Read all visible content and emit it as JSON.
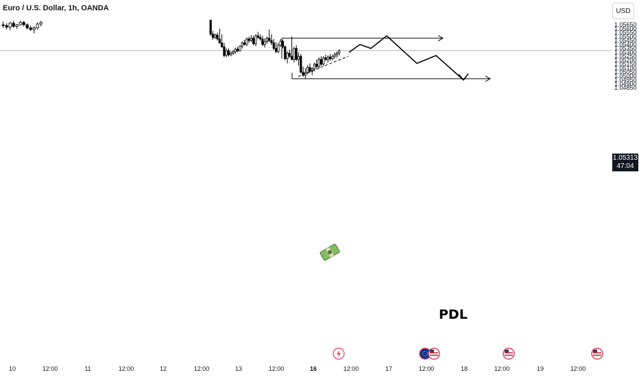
{
  "header": {
    "title": "Euro / U.S. Dollar, 1h, OANDA",
    "currency_button": "USD"
  },
  "current_price": {
    "value": "1.05313",
    "countdown": "47:04"
  },
  "annotations": {
    "pdl_label": "PDL"
  },
  "colors": {
    "candle": "#000000",
    "background": "#ffffff",
    "axis_text": "#131722",
    "grid_line": "#b2b5be",
    "event_red": "#e0425a",
    "event_blue": "#2962ff"
  },
  "chart_data": {
    "type": "candlestick",
    "title": "Euro / U.S. Dollar, 1h, OANDA",
    "ylim": [
      1.048,
      1.057
    ],
    "y_ticks": [
      "1.05650",
      "1.05600",
      "1.05550",
      "1.05500",
      "1.05450",
      "1.05400",
      "1.05350",
      "1.05300",
      "1.05250",
      "1.05200",
      "1.05150",
      "1.05100",
      "1.05050",
      "1.05000",
      "1.04950",
      "1.04900",
      "1.04850"
    ],
    "x_ticks": [
      "10",
      "12:00",
      "11",
      "12:00",
      "12",
      "12:00",
      "13",
      "12:00",
      "16",
      "12:00",
      "17",
      "12:00",
      "18",
      "12:00",
      "19",
      "12:00"
    ],
    "current_price": 1.05313,
    "series": [
      {
        "segment": 1,
        "ohlc": [
          [
            1.0564,
            1.0568,
            1.056,
            1.0563
          ],
          [
            1.0563,
            1.0566,
            1.0558,
            1.0561
          ],
          [
            1.0561,
            1.0568,
            1.0557,
            1.0566
          ],
          [
            1.0566,
            1.0569,
            1.056,
            1.0562
          ],
          [
            1.0562,
            1.0565,
            1.0559,
            1.0564
          ],
          [
            1.0564,
            1.0569,
            1.0563,
            1.0567
          ],
          [
            1.0567,
            1.0569,
            1.0562,
            1.0564
          ],
          [
            1.0564,
            1.0566,
            1.0558,
            1.056
          ],
          [
            1.056,
            1.0563,
            1.0556,
            1.0558
          ],
          [
            1.0558,
            1.0562,
            1.0553,
            1.056
          ],
          [
            1.056,
            1.0567,
            1.0558,
            1.0565
          ],
          [
            1.0565,
            1.0569,
            1.0562,
            1.0567
          ]
        ]
      },
      {
        "segment": 2,
        "ohlc": [
          [
            1.057,
            1.057,
            1.055,
            1.0552
          ],
          [
            1.0552,
            1.0556,
            1.0545,
            1.0548
          ],
          [
            1.0548,
            1.0553,
            1.0546,
            1.0551
          ],
          [
            1.0551,
            1.0554,
            1.0544,
            1.0546
          ],
          [
            1.0546,
            1.0559,
            1.054,
            1.0541
          ],
          [
            1.0541,
            1.0552,
            1.0535,
            1.0536
          ],
          [
            1.0536,
            1.0541,
            1.0523,
            1.0525
          ],
          [
            1.0525,
            1.0534,
            1.0523,
            1.0531
          ],
          [
            1.0531,
            1.0534,
            1.0524,
            1.0526
          ],
          [
            1.0526,
            1.053,
            1.0524,
            1.0528
          ],
          [
            1.0528,
            1.0532,
            1.0526,
            1.053
          ],
          [
            1.053,
            1.0535,
            1.0527,
            1.0533
          ],
          [
            1.0533,
            1.0536,
            1.0529,
            1.0531
          ],
          [
            1.0531,
            1.0538,
            1.053,
            1.0537
          ],
          [
            1.0537,
            1.0543,
            1.0534,
            1.0541
          ],
          [
            1.0541,
            1.0545,
            1.0538,
            1.0539
          ],
          [
            1.0539,
            1.0548,
            1.0537,
            1.0546
          ],
          [
            1.0546,
            1.0549,
            1.0541,
            1.0544
          ],
          [
            1.0544,
            1.0551,
            1.0542,
            1.0547
          ],
          [
            1.0547,
            1.055,
            1.0538,
            1.054
          ],
          [
            1.054,
            1.0552,
            1.0537,
            1.055
          ],
          [
            1.055,
            1.0555,
            1.0546,
            1.0548
          ],
          [
            1.0548,
            1.0552,
            1.0544,
            1.0546
          ],
          [
            1.0546,
            1.055,
            1.0537,
            1.0539
          ],
          [
            1.0539,
            1.0547,
            1.0535,
            1.0543
          ],
          [
            1.0543,
            1.0549,
            1.054,
            1.0547
          ],
          [
            1.0547,
            1.0558,
            1.0542,
            1.0544
          ],
          [
            1.0544,
            1.0552,
            1.0538,
            1.0541
          ],
          [
            1.0541,
            1.0546,
            1.0532,
            1.0534
          ],
          [
            1.0534,
            1.0542,
            1.0528,
            1.053
          ],
          [
            1.053,
            1.0541,
            1.0528,
            1.0538
          ],
          [
            1.0538,
            1.0546,
            1.0536,
            1.0543
          ],
          [
            1.0543,
            1.0545,
            1.0534,
            1.0536
          ],
          [
            1.0536,
            1.0538,
            1.0519,
            1.0521
          ],
          [
            1.0521,
            1.053,
            1.0515,
            1.0528
          ],
          [
            1.0528,
            1.0532,
            1.0522,
            1.0524
          ],
          [
            1.0524,
            1.0549,
            1.0519,
            1.052
          ],
          [
            1.052,
            1.0536,
            1.0516,
            1.0534
          ],
          [
            1.0534,
            1.0538,
            1.0518,
            1.052
          ],
          [
            1.052,
            1.0529,
            1.0512,
            1.0524
          ],
          [
            1.0524,
            1.0527,
            1.0502,
            1.0504
          ],
          [
            1.0504,
            1.0511,
            1.0498,
            1.05
          ],
          [
            1.05,
            1.0509,
            1.0496,
            1.0503
          ],
          [
            1.0503,
            1.0513,
            1.0501,
            1.051
          ],
          [
            1.051,
            1.0515,
            1.0503,
            1.0505
          ],
          [
            1.0505,
            1.051,
            1.05,
            1.0508
          ],
          [
            1.0508,
            1.0516,
            1.0505,
            1.0514
          ],
          [
            1.0514,
            1.052,
            1.0509,
            1.0511
          ],
          [
            1.0511,
            1.0523,
            1.0508,
            1.052
          ],
          [
            1.052,
            1.0524,
            1.0512,
            1.0514
          ],
          [
            1.0514,
            1.0524,
            1.0512,
            1.0522
          ],
          [
            1.0522,
            1.0526,
            1.0518,
            1.052
          ],
          [
            1.052,
            1.0525,
            1.0516,
            1.0523
          ],
          [
            1.0523,
            1.0527,
            1.0518,
            1.0521
          ],
          [
            1.0521,
            1.0526,
            1.0519,
            1.0524
          ],
          [
            1.0524,
            1.0529,
            1.0521,
            1.0526
          ],
          [
            1.0526,
            1.053,
            1.0522,
            1.0528
          ],
          [
            1.0528,
            1.0533,
            1.0525,
            1.0531
          ]
        ]
      }
    ],
    "drawings": {
      "resistance_level": 1.0547,
      "pdl_level": 1.04955,
      "projection_path": [
        1.0529,
        1.0539,
        1.0534,
        1.055,
        1.0515,
        1.0525,
        1.0494
      ],
      "trendline": [
        1.04985,
        1.0524
      ]
    },
    "event_icons": [
      "flash",
      "eu-us",
      "us",
      "us"
    ]
  }
}
